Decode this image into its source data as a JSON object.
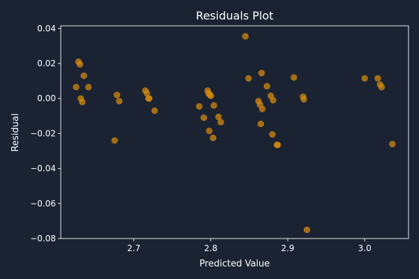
{
  "chart_data": {
    "type": "scatter",
    "title": "Residuals Plot",
    "xlabel": "Predicted Value",
    "ylabel": "Residual",
    "xlim": [
      2.605,
      3.057
    ],
    "ylim": [
      -0.08,
      0.0415
    ],
    "xticks": [
      {
        "value": 2.7,
        "label": "2.7"
      },
      {
        "value": 2.8,
        "label": "2.8"
      },
      {
        "value": 2.9,
        "label": "2.9"
      },
      {
        "value": 3.0,
        "label": "3.0"
      }
    ],
    "yticks": [
      {
        "value": 0.04,
        "label": "0.04"
      },
      {
        "value": 0.02,
        "label": "0.02"
      },
      {
        "value": 0.0,
        "label": "0.00"
      },
      {
        "value": -0.02,
        "label": "−0.02"
      },
      {
        "value": -0.04,
        "label": "−0.04"
      },
      {
        "value": -0.06,
        "label": "−0.06"
      },
      {
        "value": -0.08,
        "label": "−0.08"
      }
    ],
    "grid": false,
    "colors": {
      "background": "#1b2333",
      "axes": "#ffffff",
      "point": "#d68a0c"
    },
    "points": [
      {
        "x": 2.625,
        "y": 0.0065
      },
      {
        "x": 2.628,
        "y": 0.021
      },
      {
        "x": 2.63,
        "y": 0.0195
      },
      {
        "x": 2.631,
        "y": 0.0
      },
      {
        "x": 2.633,
        "y": -0.002
      },
      {
        "x": 2.635,
        "y": 0.013
      },
      {
        "x": 2.641,
        "y": 0.0065
      },
      {
        "x": 2.675,
        "y": -0.024
      },
      {
        "x": 2.678,
        "y": 0.002
      },
      {
        "x": 2.681,
        "y": -0.0015
      },
      {
        "x": 2.715,
        "y": 0.0045
      },
      {
        "x": 2.717,
        "y": 0.003
      },
      {
        "x": 2.719,
        "y": 0.0
      },
      {
        "x": 2.72,
        "y": 0.0
      },
      {
        "x": 2.727,
        "y": -0.007
      },
      {
        "x": 2.785,
        "y": -0.0045
      },
      {
        "x": 2.791,
        "y": -0.011
      },
      {
        "x": 2.796,
        "y": 0.0045
      },
      {
        "x": 2.797,
        "y": 0.003
      },
      {
        "x": 2.798,
        "y": -0.0185
      },
      {
        "x": 2.799,
        "y": 0.002
      },
      {
        "x": 2.8,
        "y": 0.0015
      },
      {
        "x": 2.803,
        "y": -0.0225
      },
      {
        "x": 2.804,
        "y": -0.004
      },
      {
        "x": 2.81,
        "y": -0.0105
      },
      {
        "x": 2.813,
        "y": -0.0135
      },
      {
        "x": 2.845,
        "y": 0.0355
      },
      {
        "x": 2.849,
        "y": 0.0115
      },
      {
        "x": 2.862,
        "y": -0.0015
      },
      {
        "x": 2.864,
        "y": -0.0035
      },
      {
        "x": 2.865,
        "y": -0.0145
      },
      {
        "x": 2.866,
        "y": 0.0145
      },
      {
        "x": 2.867,
        "y": -0.006
      },
      {
        "x": 2.873,
        "y": 0.007
      },
      {
        "x": 2.878,
        "y": 0.0015
      },
      {
        "x": 2.88,
        "y": -0.0205
      },
      {
        "x": 2.881,
        "y": -0.001
      },
      {
        "x": 2.886,
        "y": -0.0265
      },
      {
        "x": 2.887,
        "y": -0.0265
      },
      {
        "x": 2.908,
        "y": 0.012
      },
      {
        "x": 2.92,
        "y": 0.001
      },
      {
        "x": 2.921,
        "y": -0.0005
      },
      {
        "x": 2.925,
        "y": -0.075
      },
      {
        "x": 3.0,
        "y": 0.0115
      },
      {
        "x": 3.017,
        "y": 0.0115
      },
      {
        "x": 3.02,
        "y": 0.008
      },
      {
        "x": 3.022,
        "y": 0.0065
      },
      {
        "x": 3.036,
        "y": -0.026
      }
    ]
  }
}
